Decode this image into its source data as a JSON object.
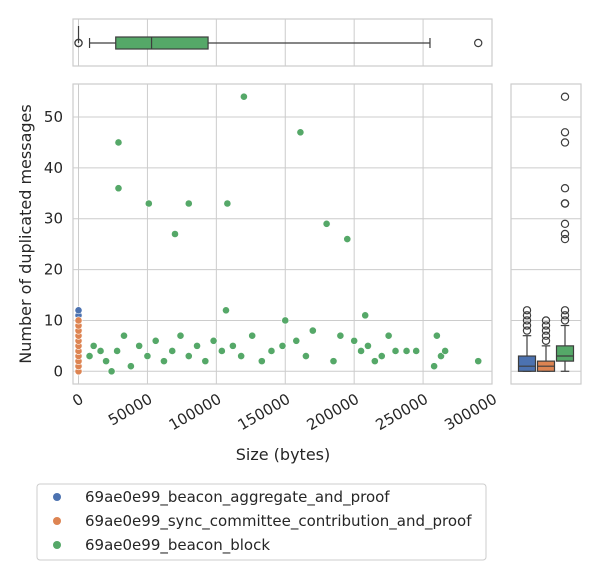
{
  "chart_data": {
    "type": "scatter",
    "xlabel": "Size (bytes)",
    "ylabel": "Number of duplicated messages",
    "xlim": [
      -4000,
      300000
    ],
    "ylim": [
      -2.5,
      56.5
    ],
    "xticks": [
      "0",
      "50000",
      "100000",
      "150000",
      "200000",
      "250000",
      "300000"
    ],
    "yticks": [
      "0",
      "10",
      "20",
      "30",
      "40",
      "50"
    ],
    "grid": true,
    "legend_position": "bottom",
    "series": [
      {
        "name": "69ae0e99_beacon_aggregate_and_proof",
        "color": "#4c72b0",
        "points": [
          [
            0,
            0
          ],
          [
            0,
            1
          ],
          [
            0,
            2
          ],
          [
            0,
            3
          ],
          [
            0,
            4
          ],
          [
            0,
            5
          ],
          [
            0,
            6
          ],
          [
            0,
            7
          ],
          [
            0,
            8
          ],
          [
            0,
            9
          ],
          [
            0,
            10
          ],
          [
            0,
            11
          ],
          [
            0,
            12
          ]
        ],
        "box": {
          "q1": 0,
          "median": 1,
          "q3": 3,
          "whisker_low": 0,
          "whisker_high": 7,
          "outliers": [
            8,
            9,
            10,
            11,
            12
          ]
        }
      },
      {
        "name": "69ae0e99_sync_committee_contribution_and_proof",
        "color": "#dd8452",
        "points": [
          [
            0,
            0
          ],
          [
            0,
            1
          ],
          [
            0,
            2
          ],
          [
            0,
            3
          ],
          [
            0,
            4
          ],
          [
            0,
            5
          ],
          [
            0,
            6
          ],
          [
            0,
            7
          ],
          [
            0,
            8
          ],
          [
            0,
            9
          ],
          [
            0,
            10
          ]
        ],
        "box": {
          "q1": 0,
          "median": 1,
          "q3": 2,
          "whisker_low": 0,
          "whisker_high": 5,
          "outliers": [
            6,
            7,
            8,
            9,
            10
          ]
        }
      },
      {
        "name": "69ae0e99_beacon_block",
        "color": "#55a868",
        "points": [
          [
            29000,
            45
          ],
          [
            29000,
            36
          ],
          [
            51000,
            33
          ],
          [
            80000,
            33
          ],
          [
            70000,
            27
          ],
          [
            120000,
            54
          ],
          [
            161000,
            47
          ],
          [
            180000,
            29
          ],
          [
            195000,
            26
          ],
          [
            108000,
            33
          ],
          [
            107000,
            12
          ],
          [
            208000,
            11
          ],
          [
            150000,
            10
          ],
          [
            225000,
            7
          ],
          [
            260000,
            7
          ],
          [
            263000,
            3
          ],
          [
            266000,
            4
          ],
          [
            258000,
            1
          ],
          [
            290000,
            2
          ],
          [
            245000,
            4
          ],
          [
            238000,
            4
          ],
          [
            230000,
            4
          ],
          [
            220000,
            3
          ],
          [
            215000,
            2
          ],
          [
            210000,
            5
          ],
          [
            205000,
            4
          ],
          [
            200000,
            6
          ],
          [
            190000,
            7
          ],
          [
            185000,
            2
          ],
          [
            170000,
            8
          ],
          [
            165000,
            3
          ],
          [
            158000,
            6
          ],
          [
            148000,
            5
          ],
          [
            140000,
            4
          ],
          [
            133000,
            2
          ],
          [
            126000,
            7
          ],
          [
            118000,
            3
          ],
          [
            112000,
            5
          ],
          [
            104000,
            4
          ],
          [
            98000,
            6
          ],
          [
            92000,
            2
          ],
          [
            86000,
            5
          ],
          [
            80000,
            3
          ],
          [
            74000,
            7
          ],
          [
            68000,
            4
          ],
          [
            62000,
            2
          ],
          [
            56000,
            6
          ],
          [
            50000,
            3
          ],
          [
            44000,
            5
          ],
          [
            38000,
            1
          ],
          [
            33000,
            7
          ],
          [
            28000,
            4
          ],
          [
            24000,
            0
          ],
          [
            20000,
            2
          ],
          [
            16000,
            4
          ],
          [
            11000,
            5
          ],
          [
            8000,
            3
          ]
        ],
        "box": {
          "q1": 2,
          "median": 3,
          "q3": 5,
          "whisker_low": 0,
          "whisker_high": 9,
          "outliers": [
            10,
            11,
            12,
            26,
            27,
            29,
            33,
            33,
            36,
            45,
            47,
            54
          ]
        }
      }
    ],
    "size_box": {
      "whisker_low": 8000,
      "q1": 27000,
      "median": 53000,
      "q3": 94000,
      "whisker_high": 255000,
      "outliers": [
        290000,
        0
      ]
    }
  }
}
